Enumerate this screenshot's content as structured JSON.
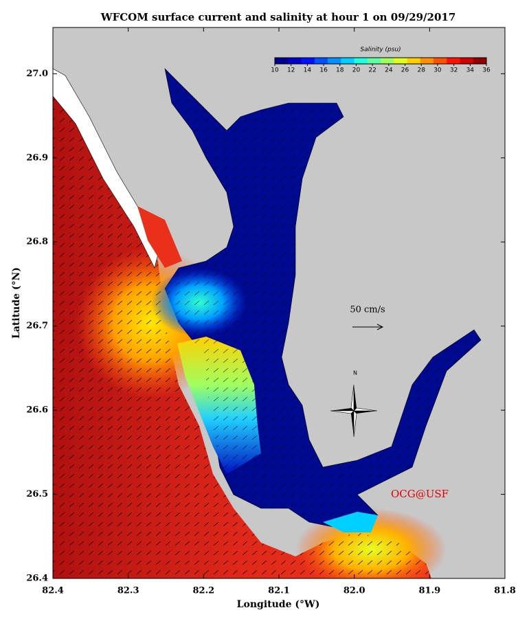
{
  "map": {
    "title": "WFCOM surface current and salinity at hour 1 on 09/29/2017",
    "xlabel": "Longitude (°W)",
    "ylabel": "Latitude (°N)",
    "xlim": [
      82.4,
      81.8
    ],
    "ylim": [
      26.4,
      27.055
    ],
    "xticks": [
      82.4,
      82.3,
      82.2,
      82.1,
      {
        "value": 82,
        "label": "82.0"
      },
      81.9,
      81.8
    ],
    "yticks": [
      26.4,
      26.5,
      26.6,
      26.7,
      26.8,
      26.9,
      {
        "value": 27,
        "label": "27.0"
      }
    ],
    "colorbar": {
      "label": "Salinity (psu)",
      "lim": [
        10,
        36
      ],
      "ticks": [
        10,
        12,
        14,
        16,
        18,
        20,
        22,
        24,
        26,
        28,
        30,
        32,
        34,
        36
      ],
      "colors": [
        "#00008f",
        "#0000c8",
        "#0010ff",
        "#0050ff",
        "#0090ff",
        "#00d0ff",
        "#20ffe0",
        "#60ffa0",
        "#a0ff60",
        "#e0ff20",
        "#ffd000",
        "#ff9000",
        "#ff5000",
        "#ff1000",
        "#d00000",
        "#900000"
      ]
    },
    "scale_label": "50 cm/s",
    "north_label": "N",
    "credit": "OCG@USF"
  }
}
